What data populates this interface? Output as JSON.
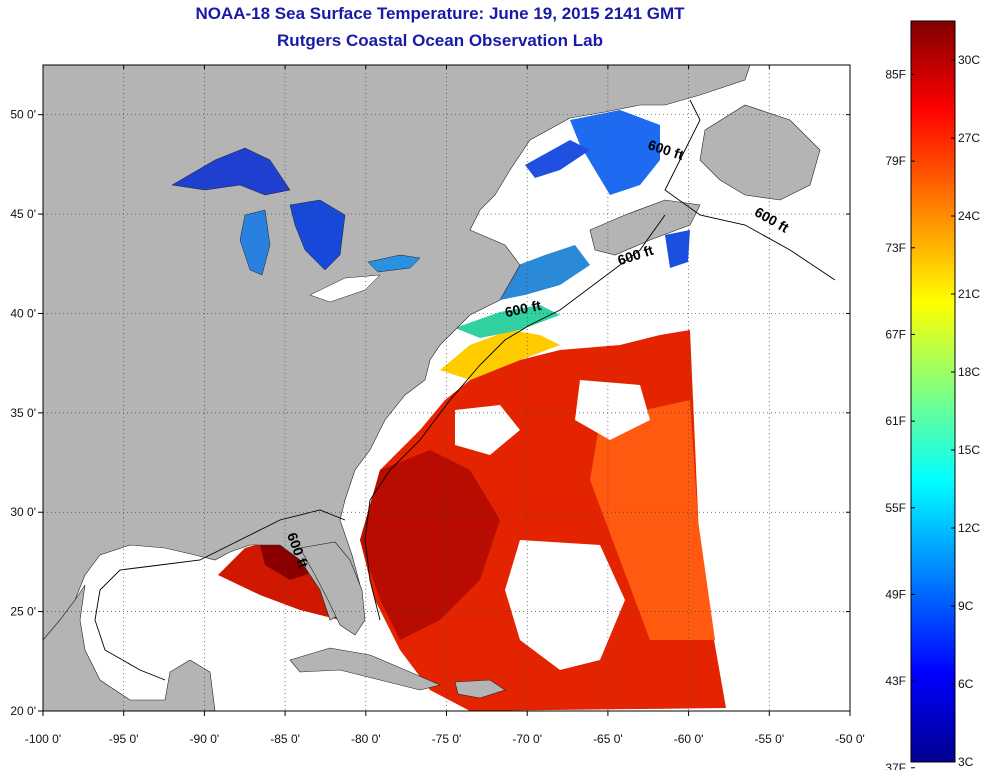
{
  "title": {
    "line1": "NOAA-18 Sea Surface Temperature:  June 19, 2015 2141 GMT",
    "line2": "Rutgers Coastal Ocean Observation Lab"
  },
  "map": {
    "lon_range": [
      -100,
      -50
    ],
    "lat_range": [
      20,
      52.5
    ],
    "lon_ticks": [
      -100,
      -95,
      -90,
      -85,
      -80,
      -75,
      -70,
      -65,
      -60,
      -55,
      -50
    ],
    "lon_tick_labels": [
      "-100 0'",
      "-95 0'",
      "-90 0'",
      "-85 0'",
      "-80 0'",
      "-75 0'",
      "-70 0'",
      "-65 0'",
      "-60 0'",
      "-55 0'",
      "-50 0'"
    ],
    "lat_ticks": [
      20,
      25,
      30,
      35,
      40,
      45,
      50
    ],
    "lat_tick_labels": [
      "20 0'",
      "25 0'",
      "30 0'",
      "35 0'",
      "40 0'",
      "45 0'",
      "50 0'"
    ],
    "grid": "dotted",
    "land_color": "#b4b4b4",
    "nodata_color": "#ffffff",
    "contour_labels": [
      {
        "text": "600 ft",
        "lon": -61.5,
        "lat": 48.0,
        "rotate": 18
      },
      {
        "text": "600 ft",
        "lon": -55.0,
        "lat": 44.5,
        "rotate": 30
      },
      {
        "text": "600 ft",
        "lon": -63.2,
        "lat": 42.7,
        "rotate": -18
      },
      {
        "text": "600 ft",
        "lon": -70.2,
        "lat": 40.0,
        "rotate": -12
      },
      {
        "text": "600 ft",
        "lon": -84.5,
        "lat": 28.0,
        "rotate": 70
      }
    ]
  },
  "colorbar": {
    "colors": [
      "#00008f",
      "#0000ff",
      "#00ffff",
      "#ffff00",
      "#ff0000",
      "#800000"
    ],
    "range_c": [
      3,
      31.5
    ],
    "celsius_ticks": [
      3,
      6,
      9,
      12,
      15,
      18,
      21,
      24,
      27,
      30
    ],
    "celsius_labels": [
      "3C",
      "6C",
      "9C",
      "12C",
      "15C",
      "18C",
      "21C",
      "24C",
      "27C",
      "30C"
    ],
    "fahrenheit_ticks": [
      37,
      43,
      49,
      55,
      61,
      67,
      73,
      79,
      85
    ],
    "fahrenheit_labels": [
      "37F",
      "43F",
      "49F",
      "55F",
      "61F",
      "67F",
      "73F",
      "79F",
      "85F"
    ]
  }
}
